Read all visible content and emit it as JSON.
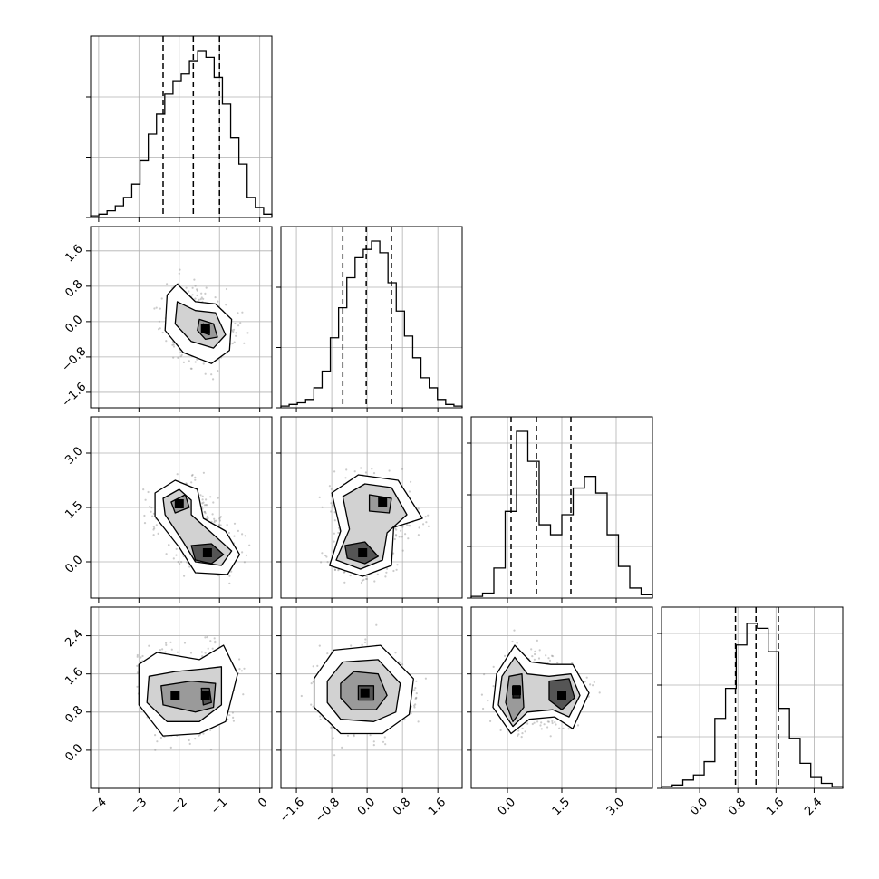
{
  "chart_data": {
    "type": "corner",
    "grid": true,
    "params": [
      {
        "range": [
          -4.2,
          0.3
        ],
        "ticks": [
          -4,
          -3,
          -2,
          -1,
          0
        ],
        "tick_labels": [
          "−4",
          "−3",
          "−2",
          "−1",
          "0"
        ],
        "quantiles": [
          -2.4,
          -1.65,
          -1.0
        ],
        "hist_ticks_frac": [
          0.35,
          0.7
        ],
        "hist": [
          0.01,
          0.02,
          0.04,
          0.07,
          0.12,
          0.2,
          0.34,
          0.5,
          0.62,
          0.74,
          0.82,
          0.86,
          0.94,
          1.0,
          0.96,
          0.84,
          0.68,
          0.48,
          0.32,
          0.12,
          0.06,
          0.02
        ]
      },
      {
        "range": [
          -1.95,
          2.15
        ],
        "ticks": [
          -1.6,
          -0.8,
          0.0,
          0.8,
          1.6
        ],
        "tick_labels": [
          "−1.6",
          "−0.8",
          "0.0",
          "0.8",
          "1.6"
        ],
        "quantiles": [
          -0.55,
          -0.02,
          0.55
        ],
        "hist_ticks_frac": [
          0.35,
          0.7
        ],
        "hist": [
          0.01,
          0.02,
          0.03,
          0.05,
          0.12,
          0.22,
          0.42,
          0.6,
          0.78,
          0.9,
          0.95,
          1.0,
          0.93,
          0.75,
          0.58,
          0.43,
          0.3,
          0.18,
          0.12,
          0.05,
          0.02,
          0.01
        ]
      },
      {
        "range": [
          -1.0,
          4.0
        ],
        "ticks": [
          0.0,
          1.5,
          3.0
        ],
        "tick_labels": [
          "0.0",
          "1.5",
          "3.0"
        ],
        "quantiles": [
          0.1,
          0.8,
          1.75
        ],
        "hist_ticks_frac": [
          0.3,
          0.6,
          0.9
        ],
        "hist": [
          0.01,
          0.03,
          0.18,
          0.52,
          1.0,
          0.82,
          0.44,
          0.38,
          0.5,
          0.66,
          0.73,
          0.63,
          0.38,
          0.19,
          0.06,
          0.02
        ]
      },
      {
        "range": [
          -0.8,
          3.0
        ],
        "ticks": [
          0.0,
          0.8,
          1.6,
          2.4
        ],
        "tick_labels": [
          "0.0",
          "0.8",
          "1.6",
          "2.4"
        ],
        "quantiles": [
          0.75,
          1.18,
          1.65
        ],
        "hist_ticks_frac": [
          0.3,
          0.6,
          0.9
        ],
        "hist": [
          0.01,
          0.02,
          0.05,
          0.08,
          0.16,
          0.42,
          0.6,
          0.86,
          0.99,
          0.96,
          0.82,
          0.48,
          0.3,
          0.15,
          0.07,
          0.03,
          0.01
        ]
      }
    ],
    "pairs": [
      {
        "x": 0,
        "y": 1,
        "peaks": [
          [
            -1.35,
            -0.15
          ]
        ],
        "contours": [
          [
            [
              -2.3,
              0.6
            ],
            [
              -2.05,
              0.85
            ],
            [
              -1.6,
              0.45
            ],
            [
              -1.1,
              0.4
            ],
            [
              -0.7,
              0.05
            ],
            [
              -0.75,
              -0.65
            ],
            [
              -1.2,
              -0.95
            ],
            [
              -1.9,
              -0.7
            ],
            [
              -2.35,
              -0.2
            ]
          ],
          [
            [
              -2.05,
              0.45
            ],
            [
              -1.6,
              0.25
            ],
            [
              -1.1,
              0.2
            ],
            [
              -0.85,
              -0.3
            ],
            [
              -1.15,
              -0.6
            ],
            [
              -1.7,
              -0.45
            ],
            [
              -2.1,
              -0.05
            ]
          ],
          [
            [
              -1.5,
              0.05
            ],
            [
              -1.15,
              -0.05
            ],
            [
              -1.05,
              -0.35
            ],
            [
              -1.35,
              -0.4
            ],
            [
              -1.55,
              -0.2
            ]
          ],
          [
            [
              -1.4,
              -0.05
            ],
            [
              -1.25,
              -0.1
            ],
            [
              -1.25,
              -0.3
            ],
            [
              -1.4,
              -0.25
            ]
          ]
        ]
      },
      {
        "x": 0,
        "y": 2,
        "peaks": [
          [
            -1.3,
            0.25
          ],
          [
            -2.0,
            1.6
          ]
        ],
        "contours": [
          [
            [
              -2.6,
              1.9
            ],
            [
              -2.1,
              2.25
            ],
            [
              -1.55,
              2.0
            ],
            [
              -1.4,
              1.2
            ],
            [
              -0.85,
              0.85
            ],
            [
              -0.5,
              0.2
            ],
            [
              -0.8,
              -0.35
            ],
            [
              -1.6,
              -0.3
            ],
            [
              -2.0,
              0.4
            ],
            [
              -2.6,
              1.25
            ]
          ],
          [
            [
              -2.4,
              1.75
            ],
            [
              -2.0,
              2.0
            ],
            [
              -1.7,
              1.7
            ],
            [
              -1.7,
              1.3
            ],
            [
              -1.1,
              0.7
            ],
            [
              -0.7,
              0.3
            ],
            [
              -0.95,
              -0.1
            ],
            [
              -1.6,
              0.0
            ],
            [
              -1.9,
              0.55
            ],
            [
              -2.35,
              1.3
            ]
          ],
          [
            [
              -2.2,
              1.65
            ],
            [
              -1.85,
              1.85
            ],
            [
              -1.75,
              1.5
            ],
            [
              -2.1,
              1.35
            ]
          ],
          [
            [
              -1.7,
              0.45
            ],
            [
              -1.2,
              0.5
            ],
            [
              -0.9,
              0.2
            ],
            [
              -1.2,
              -0.05
            ],
            [
              -1.6,
              0.05
            ]
          ]
        ]
      },
      {
        "x": 1,
        "y": 2,
        "peaks": [
          [
            -0.1,
            0.25
          ],
          [
            0.35,
            1.65
          ]
        ],
        "contours": [
          [
            [
              -0.8,
              1.9
            ],
            [
              -0.2,
              2.4
            ],
            [
              0.7,
              2.25
            ],
            [
              1.25,
              1.2
            ],
            [
              0.6,
              0.95
            ],
            [
              0.55,
              -0.1
            ],
            [
              -0.1,
              -0.4
            ],
            [
              -0.85,
              -0.1
            ],
            [
              -0.6,
              0.85
            ]
          ],
          [
            [
              -0.55,
              1.8
            ],
            [
              -0.05,
              2.15
            ],
            [
              0.55,
              2.05
            ],
            [
              0.9,
              1.3
            ],
            [
              0.45,
              0.8
            ],
            [
              0.35,
              0.05
            ],
            [
              -0.15,
              -0.2
            ],
            [
              -0.7,
              0.05
            ],
            [
              -0.4,
              0.9
            ]
          ],
          [
            [
              0.05,
              1.85
            ],
            [
              0.55,
              1.75
            ],
            [
              0.5,
              1.35
            ],
            [
              0.05,
              1.4
            ]
          ],
          [
            [
              -0.5,
              0.45
            ],
            [
              -0.05,
              0.55
            ],
            [
              0.25,
              0.15
            ],
            [
              -0.05,
              -0.05
            ],
            [
              -0.45,
              0.1
            ]
          ]
        ]
      },
      {
        "x": 0,
        "y": 3,
        "peaks": [
          [
            -2.1,
            1.15
          ],
          [
            -1.35,
            1.15
          ]
        ],
        "contours": [
          [
            [
              -3.0,
              1.8
            ],
            [
              -2.55,
              2.05
            ],
            [
              -1.5,
              1.9
            ],
            [
              -0.9,
              2.2
            ],
            [
              -0.55,
              1.6
            ],
            [
              -0.85,
              0.6
            ],
            [
              -1.5,
              0.35
            ],
            [
              -2.4,
              0.3
            ],
            [
              -3.0,
              0.95
            ]
          ],
          [
            [
              -2.75,
              1.55
            ],
            [
              -2.1,
              1.65
            ],
            [
              -1.45,
              1.7
            ],
            [
              -0.95,
              1.75
            ],
            [
              -0.95,
              0.95
            ],
            [
              -1.5,
              0.6
            ],
            [
              -2.3,
              0.6
            ],
            [
              -2.8,
              1.0
            ]
          ],
          [
            [
              -2.45,
              1.35
            ],
            [
              -1.7,
              1.45
            ],
            [
              -1.1,
              1.4
            ],
            [
              -1.15,
              0.9
            ],
            [
              -1.6,
              0.8
            ],
            [
              -2.4,
              0.95
            ]
          ],
          [
            [
              -1.45,
              1.3
            ],
            [
              -1.25,
              1.3
            ],
            [
              -1.2,
              1.0
            ],
            [
              -1.4,
              0.95
            ]
          ]
        ]
      },
      {
        "x": 1,
        "y": 3,
        "peaks": [
          [
            -0.05,
            1.2
          ]
        ],
        "contours": [
          [
            [
              -1.2,
              1.5
            ],
            [
              -0.75,
              2.1
            ],
            [
              0.3,
              2.2
            ],
            [
              1.05,
              1.5
            ],
            [
              0.95,
              0.75
            ],
            [
              0.35,
              0.35
            ],
            [
              -0.6,
              0.35
            ],
            [
              -1.2,
              0.9
            ]
          ],
          [
            [
              -0.9,
              1.45
            ],
            [
              -0.55,
              1.85
            ],
            [
              0.25,
              1.9
            ],
            [
              0.75,
              1.4
            ],
            [
              0.65,
              0.8
            ],
            [
              0.15,
              0.6
            ],
            [
              -0.6,
              0.65
            ],
            [
              -0.9,
              1.0
            ]
          ],
          [
            [
              -0.6,
              1.4
            ],
            [
              -0.3,
              1.65
            ],
            [
              0.25,
              1.6
            ],
            [
              0.45,
              1.15
            ],
            [
              0.2,
              0.85
            ],
            [
              -0.35,
              0.85
            ],
            [
              -0.6,
              1.1
            ]
          ],
          [
            [
              -0.2,
              1.35
            ],
            [
              0.15,
              1.35
            ],
            [
              0.15,
              1.05
            ],
            [
              -0.2,
              1.05
            ]
          ]
        ]
      },
      {
        "x": 2,
        "y": 3,
        "peaks": [
          [
            0.25,
            1.25
          ],
          [
            1.5,
            1.15
          ]
        ],
        "contours": [
          [
            [
              -0.3,
              1.6
            ],
            [
              0.2,
              2.2
            ],
            [
              0.65,
              1.85
            ],
            [
              1.2,
              1.8
            ],
            [
              1.8,
              1.8
            ],
            [
              2.25,
              1.2
            ],
            [
              1.8,
              0.45
            ],
            [
              1.3,
              0.7
            ],
            [
              0.6,
              0.65
            ],
            [
              0.1,
              0.35
            ],
            [
              -0.4,
              0.9
            ]
          ],
          [
            [
              -0.15,
              1.55
            ],
            [
              0.2,
              1.95
            ],
            [
              0.55,
              1.6
            ],
            [
              1.15,
              1.55
            ],
            [
              1.75,
              1.6
            ],
            [
              2.0,
              1.15
            ],
            [
              1.7,
              0.7
            ],
            [
              1.25,
              0.85
            ],
            [
              0.55,
              0.8
            ],
            [
              0.15,
              0.5
            ],
            [
              -0.25,
              0.95
            ]
          ],
          [
            [
              0.05,
              1.55
            ],
            [
              0.4,
              1.6
            ],
            [
              0.45,
              0.9
            ],
            [
              0.15,
              0.6
            ],
            [
              -0.05,
              1.0
            ]
          ],
          [
            [
              1.15,
              1.45
            ],
            [
              1.7,
              1.5
            ],
            [
              1.85,
              1.1
            ],
            [
              1.5,
              0.85
            ],
            [
              1.15,
              1.05
            ]
          ],
          [
            [
              0.15,
              1.35
            ],
            [
              0.35,
              1.35
            ],
            [
              0.35,
              1.1
            ],
            [
              0.15,
              1.1
            ]
          ]
        ]
      }
    ]
  }
}
